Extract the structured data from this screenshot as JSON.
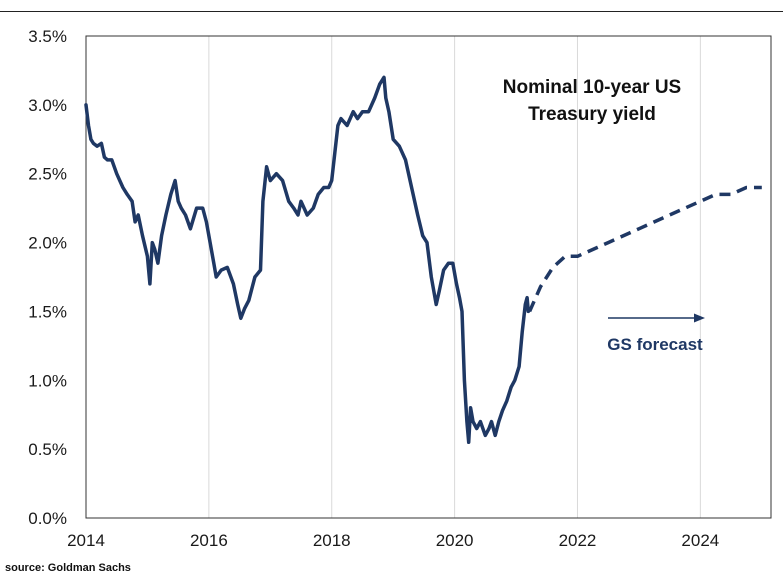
{
  "chart_data": {
    "type": "line",
    "title_lines": [
      "Nominal 10-year US",
      "Treasury yield"
    ],
    "xlabel": "",
    "ylabel": "",
    "x_ticks": [
      "2014",
      "2016",
      "2018",
      "2020",
      "2022",
      "2024"
    ],
    "y_ticks": [
      "0.0%",
      "0.5%",
      "1.0%",
      "1.5%",
      "2.0%",
      "2.5%",
      "3.0%",
      "3.5%"
    ],
    "xlim": [
      2014,
      2025.15
    ],
    "ylim": [
      0,
      3.5
    ],
    "grid": "vertical",
    "colors": {
      "series": "#1f3864",
      "grid": "#d9d9d9",
      "axis": "#333333"
    },
    "series": [
      {
        "name": "Nominal 10-year US Treasury yield",
        "style": "solid",
        "x": [
          2014.0,
          2014.04,
          2014.08,
          2014.12,
          2014.18,
          2014.25,
          2014.3,
          2014.35,
          2014.42,
          2014.5,
          2014.55,
          2014.6,
          2014.67,
          2014.75,
          2014.8,
          2014.85,
          2014.92,
          2015.0,
          2015.04,
          2015.08,
          2015.12,
          2015.17,
          2015.23,
          2015.3,
          2015.38,
          2015.45,
          2015.5,
          2015.55,
          2015.62,
          2015.7,
          2015.8,
          2015.9,
          2015.96,
          2016.02,
          2016.08,
          2016.12,
          2016.2,
          2016.3,
          2016.4,
          2016.47,
          2016.52,
          2016.58,
          2016.65,
          2016.75,
          2016.84,
          2016.88,
          2016.94,
          2017.0,
          2017.1,
          2017.2,
          2017.3,
          2017.38,
          2017.45,
          2017.5,
          2017.6,
          2017.7,
          2017.78,
          2017.87,
          2017.95,
          2018.0,
          2018.05,
          2018.1,
          2018.15,
          2018.25,
          2018.35,
          2018.42,
          2018.5,
          2018.6,
          2018.7,
          2018.78,
          2018.85,
          2018.88,
          2018.93,
          2019.0,
          2019.1,
          2019.2,
          2019.3,
          2019.4,
          2019.48,
          2019.55,
          2019.62,
          2019.7,
          2019.75,
          2019.82,
          2019.9,
          2019.97,
          2020.03,
          2020.08,
          2020.12,
          2020.16,
          2020.2,
          2020.23,
          2020.26,
          2020.3,
          2020.36,
          2020.42,
          2020.5,
          2020.56,
          2020.6,
          2020.66,
          2020.72,
          2020.78,
          2020.85,
          2020.92,
          2020.98,
          2021.05,
          2021.1,
          2021.15,
          2021.18,
          2021.2
        ],
        "y": [
          3.0,
          2.85,
          2.75,
          2.72,
          2.7,
          2.72,
          2.62,
          2.6,
          2.6,
          2.5,
          2.45,
          2.4,
          2.35,
          2.3,
          2.15,
          2.2,
          2.05,
          1.9,
          1.7,
          2.0,
          1.95,
          1.85,
          2.05,
          2.2,
          2.35,
          2.45,
          2.3,
          2.25,
          2.2,
          2.1,
          2.25,
          2.25,
          2.15,
          2.0,
          1.85,
          1.75,
          1.8,
          1.82,
          1.7,
          1.55,
          1.45,
          1.52,
          1.58,
          1.75,
          1.8,
          2.3,
          2.55,
          2.45,
          2.5,
          2.45,
          2.3,
          2.25,
          2.2,
          2.3,
          2.2,
          2.25,
          2.35,
          2.4,
          2.4,
          2.45,
          2.65,
          2.85,
          2.9,
          2.85,
          2.95,
          2.9,
          2.95,
          2.95,
          3.05,
          3.15,
          3.2,
          3.05,
          2.95,
          2.75,
          2.7,
          2.6,
          2.4,
          2.2,
          2.05,
          2.0,
          1.75,
          1.55,
          1.65,
          1.8,
          1.85,
          1.85,
          1.7,
          1.6,
          1.5,
          1.0,
          0.7,
          0.55,
          0.8,
          0.7,
          0.65,
          0.7,
          0.6,
          0.65,
          0.7,
          0.6,
          0.7,
          0.78,
          0.85,
          0.95,
          1.0,
          1.1,
          1.35,
          1.55,
          1.6,
          1.5
        ]
      },
      {
        "name": "GS forecast",
        "style": "dashed",
        "x": [
          2021.22,
          2021.4,
          2021.6,
          2021.8,
          2022.0,
          2022.5,
          2023.0,
          2023.5,
          2024.0,
          2024.25,
          2024.5,
          2024.75,
          2025.0
        ],
        "y": [
          1.5,
          1.68,
          1.82,
          1.9,
          1.9,
          2.0,
          2.1,
          2.2,
          2.3,
          2.35,
          2.35,
          2.4,
          2.4
        ]
      }
    ],
    "annotation": "GS forecast"
  },
  "source": "source: Goldman Sachs"
}
